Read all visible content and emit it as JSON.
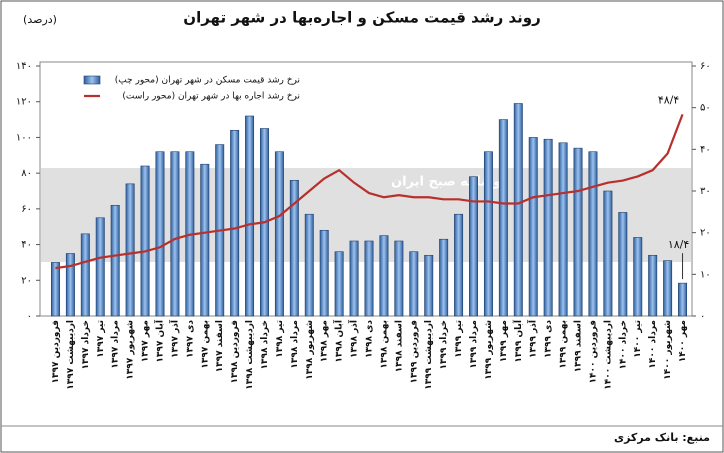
{
  "chart_data": {
    "type": "bar_line",
    "title": "روند رشد قیمت مسکن و اجاره‌بها در شهر تهران",
    "unit_label": "(درصد)",
    "source": "منبع: بانک مرکزی",
    "watermark": "روزنامه صبح ایران",
    "categories": [
      "فروردین ۱۳۹۷",
      "اردیبهشت ۱۳۹۷",
      "خرداد ۱۳۹۷",
      "تیر ۱۳۹۷",
      "مرداد ۱۳۹۷",
      "شهریور ۱۳۹۷",
      "مهر ۱۳۹۷",
      "آبان ۱۳۹۷",
      "آذر ۱۳۹۷",
      "دی ۱۳۹۷",
      "بهمن ۱۳۹۷",
      "اسفند ۱۳۹۷",
      "فروردین ۱۳۹۸",
      "اردیبهشت ۱۳۹۸",
      "خرداد ۱۳۹۸",
      "تیر ۱۳۹۸",
      "مرداد ۱۳۹۸",
      "شهریور ۱۳۹۸",
      "مهر ۱۳۹۸",
      "آبان ۱۳۹۸",
      "آذر ۱۳۹۸",
      "دی ۱۳۹۸",
      "بهمن ۱۳۹۸",
      "اسفند ۱۳۹۸",
      "فروردین ۱۳۹۹",
      "اردیبهشت ۱۳۹۹",
      "خرداد ۱۳۹۹",
      "تیر ۱۳۹۹",
      "مرداد ۱۳۹۹",
      "شهریور ۱۳۹۹",
      "مهر ۱۳۹۹",
      "آبان ۱۳۹۹",
      "آذر ۱۳۹۹",
      "دی ۱۳۹۹",
      "بهمن ۱۳۹۹",
      "اسفند ۱۳۹۹",
      "فروردین ۱۴۰۰",
      "اردیبهشت ۱۴۰۰",
      "خرداد ۱۴۰۰",
      "تیر ۱۴۰۰",
      "مرداد ۱۴۰۰",
      "شهریور ۱۴۰۰",
      "مهر ۱۴۰۰"
    ],
    "series": [
      {
        "name": "نرخ رشد قیمت مسکن در شهر تهران (محور چپ)",
        "type": "bar",
        "color": "#4a7fc1",
        "axis": "y",
        "values": [
          30,
          35,
          46,
          55,
          62,
          74,
          84,
          92,
          92,
          92,
          85,
          96,
          104,
          112,
          105,
          92,
          76,
          57,
          48,
          36,
          42,
          42,
          45,
          42,
          36,
          34,
          43,
          57,
          78,
          92,
          110,
          119,
          100,
          99,
          97,
          94,
          92,
          70,
          58,
          44,
          34,
          31,
          18.4
        ],
        "value_labels": [
          null,
          null,
          null,
          null,
          null,
          null,
          null,
          null,
          null,
          null,
          null,
          null,
          null,
          null,
          null,
          null,
          null,
          null,
          null,
          null,
          null,
          null,
          null,
          null,
          null,
          null,
          null,
          null,
          null,
          null,
          null,
          null,
          null,
          null,
          null,
          null,
          null,
          null,
          null,
          null,
          null,
          null,
          "۱۸/۴"
        ]
      },
      {
        "name": "نرخ رشد اجاره بها در شهر تهران (محور راست)",
        "type": "line",
        "color": "#b8302c",
        "axis": "y2",
        "values": [
          11.5,
          12,
          13,
          14,
          14.5,
          15,
          15.5,
          16.5,
          18.5,
          19.5,
          20,
          20.5,
          21,
          22,
          22.5,
          24,
          27,
          30,
          33,
          35,
          32,
          29.5,
          28.5,
          29,
          28.5,
          28.5,
          28,
          28,
          27.5,
          27.5,
          27,
          27,
          28.5,
          29,
          29.5,
          30,
          31,
          32,
          32.5,
          33.5,
          35,
          39,
          48.4
        ],
        "value_labels": [
          null,
          null,
          null,
          null,
          null,
          null,
          null,
          null,
          null,
          null,
          null,
          null,
          null,
          null,
          null,
          null,
          null,
          null,
          null,
          null,
          null,
          null,
          null,
          null,
          null,
          null,
          null,
          null,
          null,
          null,
          null,
          null,
          null,
          null,
          null,
          null,
          null,
          null,
          null,
          null,
          null,
          null,
          "۴۸/۴"
        ]
      }
    ],
    "ylim": [
      0,
      140
    ],
    "yticks": [
      {
        "value": 0,
        "label": "۰"
      },
      {
        "value": 20,
        "label": "۲۰"
      },
      {
        "value": 40,
        "label": "۴۰"
      },
      {
        "value": 60,
        "label": "۶۰"
      },
      {
        "value": 80,
        "label": "۸۰"
      },
      {
        "value": 100,
        "label": "۱۰۰"
      },
      {
        "value": 120,
        "label": "۱۲۰"
      },
      {
        "value": 140,
        "label": "۱۴۰"
      }
    ],
    "y2lim": [
      0,
      60
    ],
    "y2ticks": [
      {
        "value": 0,
        "label": "۰"
      },
      {
        "value": 10,
        "label": "۱۰"
      },
      {
        "value": 20,
        "label": "۲۰"
      },
      {
        "value": 30,
        "label": "۳۰"
      },
      {
        "value": 40,
        "label": "۴۰"
      },
      {
        "value": 50,
        "label": "۵۰"
      },
      {
        "value": 60,
        "label": "۶۰"
      }
    ],
    "legend": "top-left"
  }
}
